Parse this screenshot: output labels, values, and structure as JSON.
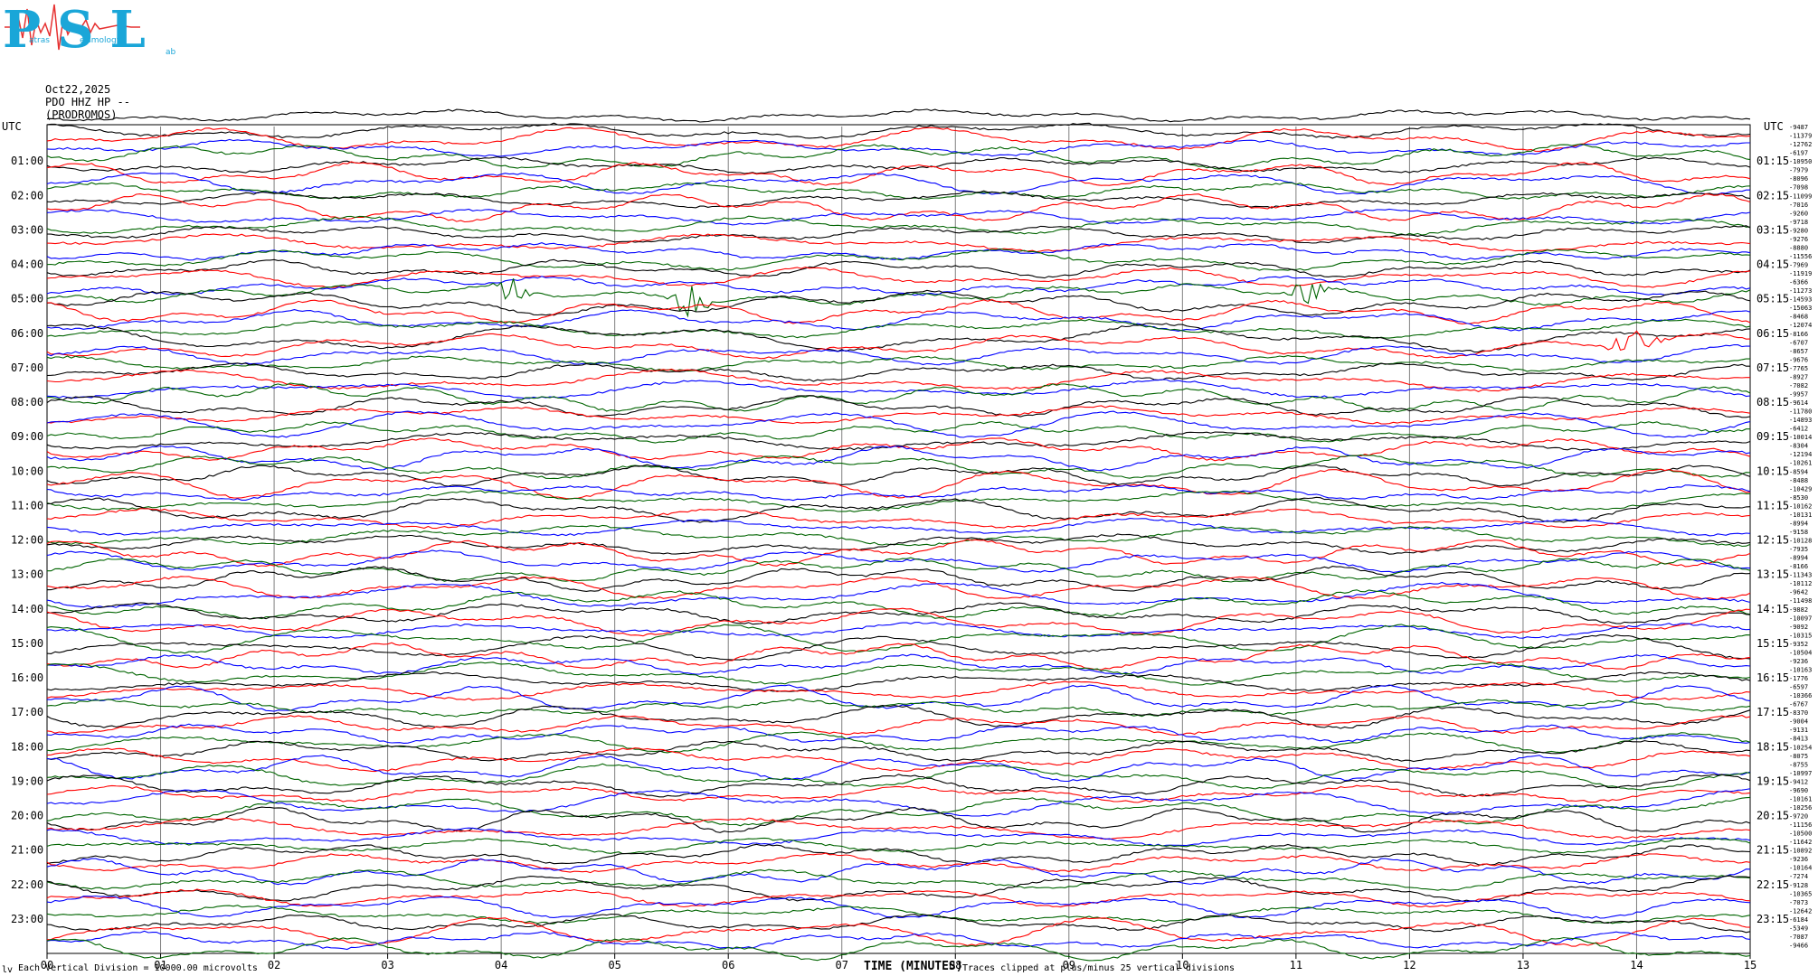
{
  "logo": {
    "letters": "PSL",
    "subtitle_left": "atras",
    "subtitle_mid": "eismology",
    "subtitle_right": "ab"
  },
  "header": {
    "date": "Oct22,2025",
    "station": "PDO HHZ HP --",
    "location": "(PRODROMOS)"
  },
  "footer": {
    "division_note": "Each Vertical Division = 10000.00 microvolts",
    "clip_note": "Traces clipped at plus/minus 25 vertical divisions",
    "corner_mark": "lv"
  },
  "colors": {
    "trace_cycle": [
      "#000000",
      "#ff0000",
      "#0000ff",
      "#006400"
    ],
    "grid": "#808080",
    "logo_blue": "#1aa6d8",
    "logo_red": "#e63232"
  },
  "chart_data": {
    "type": "line",
    "title": "",
    "xlabel": "TIME (MINUTES)",
    "ylabel": "UTC",
    "xlim": [
      0,
      15
    ],
    "x_ticks": [
      "00",
      "01",
      "02",
      "03",
      "04",
      "05",
      "06",
      "07",
      "08",
      "09",
      "10",
      "11",
      "12",
      "13",
      "14",
      "15"
    ],
    "left_axis_label": "UTC",
    "right_axis_label": "UTC",
    "left_hour_labels": [
      "01:00",
      "02:00",
      "03:00",
      "04:00",
      "05:00",
      "06:00",
      "07:00",
      "08:00",
      "09:00",
      "10:00",
      "11:00",
      "12:00",
      "13:00",
      "14:00",
      "15:00",
      "16:00",
      "17:00",
      "18:00",
      "19:00",
      "20:00",
      "21:00",
      "22:00",
      "23:00"
    ],
    "right_hour_labels": [
      "01:15",
      "02:15",
      "03:15",
      "04:15",
      "05:15",
      "06:15",
      "07:15",
      "08:15",
      "09:15",
      "10:15",
      "11:15",
      "12:15",
      "13:15",
      "14:15",
      "15:15",
      "16:15",
      "17:15",
      "18:15",
      "19:15",
      "20:15",
      "21:15",
      "22:15",
      "23:15"
    ],
    "trace_minutes": 15,
    "trace_color_cycle": [
      "black",
      "red",
      "blue",
      "green"
    ],
    "trace_offsets": [
      "-9487",
      "-11379",
      "-12762",
      "-6197",
      "-10950",
      "-7979",
      "-8096",
      "-7098",
      "-11099",
      "-7016",
      "-9260",
      "-9718",
      "-9280",
      "-9276",
      "-8880",
      "-11556",
      "-7969",
      "-11919",
      "-6366",
      "-11273",
      "-14593",
      "-15063",
      "-8468",
      "-12074",
      "-8166",
      "-6707",
      "-8657",
      "-9676",
      "-7765",
      "-8927",
      "-7082",
      "-9957",
      "-9614",
      "-11780",
      "-14893",
      "-6412",
      "-10014",
      "-8304",
      "-12194",
      "-10261",
      "-8594",
      "-8488",
      "-10429",
      "-8530",
      "-10162",
      "-10131",
      "-8994",
      "-9158",
      "-10128",
      "-7935",
      "-8994",
      "-8166",
      "-11343",
      "-10112",
      "-9642",
      "-11498",
      "-9882",
      "-10097",
      "-9092",
      "-10315",
      "-9352",
      "-10504",
      "-9236",
      "-10163",
      "-1776",
      "-6597",
      "-10366",
      "-6767",
      "-8370",
      "-9004",
      "-9131",
      "-8413",
      "-10254",
      "-8075",
      "-8755",
      "-10997",
      "-9412",
      "-9690",
      "-10161",
      "-10256",
      "-9720",
      "-11156",
      "-10500",
      "-11642",
      "-10892",
      "-9236",
      "-10164",
      "-7274",
      "-9128",
      "-10365",
      "-7073",
      "-12642",
      "-6184",
      "-5349",
      "-7087",
      "-9466"
    ],
    "events": [
      {
        "trace_color": "green",
        "hour": "04:00",
        "minute_start": 3.9,
        "minute_end": 4.3,
        "label": ""
      },
      {
        "trace_color": "green",
        "hour": "04:00",
        "minute_start": 5.4,
        "minute_end": 5.9,
        "label": ""
      },
      {
        "trace_color": "green",
        "hour": "04:00",
        "minute_start": 10.9,
        "minute_end": 11.3,
        "label": ""
      },
      {
        "trace_color": "red",
        "hour": "06:00",
        "minute_start": 13.7,
        "minute_end": 14.3,
        "label": ""
      }
    ]
  }
}
